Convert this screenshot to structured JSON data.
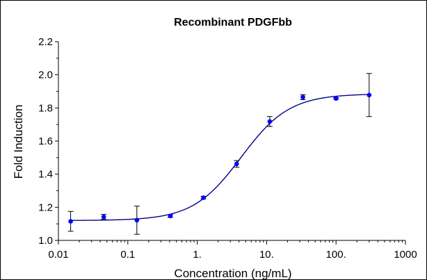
{
  "chart_data": {
    "type": "scatter",
    "title": "Recombinant PDGFbb",
    "xlabel": "Concentration (ng/mL)",
    "ylabel": "Fold Induction",
    "x_scale": "log",
    "xlim": [
      0.01,
      1000
    ],
    "ylim": [
      1.0,
      2.2
    ],
    "x_ticks": [
      0.01,
      0.1,
      1,
      10,
      100,
      1000
    ],
    "x_tick_labels": [
      "0.01",
      "0.1",
      "1.",
      "10.",
      "100.",
      "1000"
    ],
    "y_ticks": [
      1.0,
      1.2,
      1.4,
      1.6,
      1.8,
      2.0,
      2.2
    ],
    "y_tick_labels": [
      "1.0",
      "1.2",
      "1.4",
      "1.6",
      "1.8",
      "2.0",
      "2.2"
    ],
    "grid": false,
    "point_color": "#0000ff",
    "curve_color": "#00008b",
    "series": [
      {
        "x": [
          0.015,
          0.045,
          0.135,
          0.41,
          1.23,
          3.7,
          11.1,
          33.3,
          100,
          300
        ],
        "y": [
          1.115,
          1.142,
          1.122,
          1.147,
          1.258,
          1.462,
          1.718,
          1.865,
          1.857,
          1.878
        ],
        "err": [
          0.06,
          0.015,
          0.085,
          0.008,
          0.008,
          0.02,
          0.03,
          0.015,
          0.005,
          0.13
        ]
      }
    ],
    "fit": {
      "model": "4PL",
      "bottom": 1.12,
      "top": 1.885,
      "ec50": 4.3,
      "hill": 1.25
    }
  }
}
